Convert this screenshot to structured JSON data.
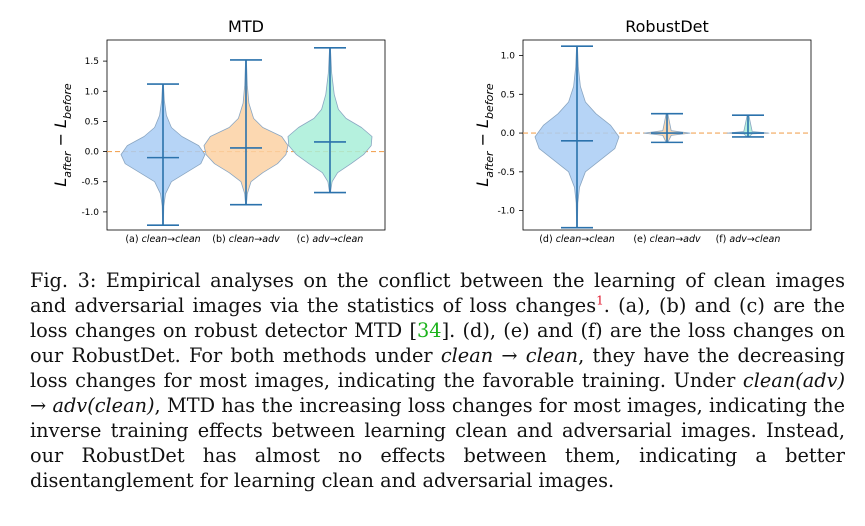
{
  "chart_data": [
    {
      "type": "violin",
      "title": "MTD",
      "ylabel": "L_after − L_before",
      "ylim": [
        -1.3,
        1.85
      ],
      "yticks": [
        "1.5",
        "1.0",
        "0.5",
        "0.0",
        "-0.5",
        "-1.0"
      ],
      "ytick_values": [
        1.5,
        1.0,
        0.5,
        0.0,
        -0.5,
        -1.0
      ],
      "reference_line": 0.0,
      "categories": [
        "(a) clean→clean",
        "(b) clean→adv",
        "(c) adv→clean"
      ],
      "violins": [
        {
          "label": "(a) clean→clean",
          "color": "#a9cdf4",
          "min": -1.22,
          "max": 1.12,
          "median": -0.1,
          "density": [
            [
              -1.22,
              0.01
            ],
            [
              -0.9,
              0.02
            ],
            [
              -0.7,
              0.06
            ],
            [
              -0.5,
              0.2
            ],
            [
              -0.35,
              0.55
            ],
            [
              -0.2,
              0.9
            ],
            [
              -0.05,
              1.0
            ],
            [
              0.1,
              0.85
            ],
            [
              0.25,
              0.45
            ],
            [
              0.4,
              0.2
            ],
            [
              0.6,
              0.08
            ],
            [
              0.85,
              0.03
            ],
            [
              1.12,
              0.01
            ]
          ]
        },
        {
          "label": "(b) clean→adv",
          "color": "#fbd1a3",
          "min": -0.88,
          "max": 1.52,
          "median": 0.06,
          "density": [
            [
              -0.88,
              0.01
            ],
            [
              -0.7,
              0.03
            ],
            [
              -0.5,
              0.12
            ],
            [
              -0.35,
              0.4
            ],
            [
              -0.2,
              0.75
            ],
            [
              -0.05,
              0.95
            ],
            [
              0.1,
              1.0
            ],
            [
              0.25,
              0.85
            ],
            [
              0.4,
              0.4
            ],
            [
              0.55,
              0.18
            ],
            [
              0.8,
              0.07
            ],
            [
              1.1,
              0.03
            ],
            [
              1.52,
              0.01
            ]
          ]
        },
        {
          "label": "(c) adv→clean",
          "color": "#a8efd8",
          "min": -0.68,
          "max": 1.72,
          "median": 0.16,
          "density": [
            [
              -0.68,
              0.01
            ],
            [
              -0.5,
              0.05
            ],
            [
              -0.35,
              0.18
            ],
            [
              -0.2,
              0.5
            ],
            [
              -0.05,
              0.8
            ],
            [
              0.1,
              0.98
            ],
            [
              0.25,
              1.0
            ],
            [
              0.4,
              0.75
            ],
            [
              0.55,
              0.38
            ],
            [
              0.7,
              0.2
            ],
            [
              0.95,
              0.1
            ],
            [
              1.3,
              0.04
            ],
            [
              1.72,
              0.01
            ]
          ]
        }
      ]
    },
    {
      "type": "violin",
      "title": "RobustDet",
      "ylabel": "L_after − L_before",
      "ylim": [
        -1.25,
        1.2
      ],
      "yticks": [
        "1.0",
        "0.5",
        "0.0",
        "-0.5",
        "-1.0"
      ],
      "ytick_values": [
        1.0,
        0.5,
        0.0,
        -0.5,
        -1.0
      ],
      "reference_line": 0.0,
      "categories": [
        "(d) clean→clean",
        "(e) clean→adv",
        "(f) adv→clean"
      ],
      "violins": [
        {
          "label": "(d) clean→clean",
          "color": "#a9cdf4",
          "min": -1.22,
          "max": 1.12,
          "median": -0.1,
          "density": [
            [
              -1.22,
              0.01
            ],
            [
              -0.9,
              0.02
            ],
            [
              -0.7,
              0.06
            ],
            [
              -0.5,
              0.2
            ],
            [
              -0.35,
              0.55
            ],
            [
              -0.2,
              0.9
            ],
            [
              -0.05,
              1.0
            ],
            [
              0.1,
              0.8
            ],
            [
              0.25,
              0.45
            ],
            [
              0.4,
              0.2
            ],
            [
              0.6,
              0.08
            ],
            [
              0.85,
              0.03
            ],
            [
              1.12,
              0.01
            ]
          ]
        },
        {
          "label": "(e) clean→adv",
          "color": "#fbd1a3",
          "min": -0.12,
          "max": 0.25,
          "median": 0.0,
          "density": [
            [
              -0.12,
              0.02
            ],
            [
              -0.03,
              0.1
            ],
            [
              0.0,
              0.55
            ],
            [
              0.03,
              0.1
            ],
            [
              0.25,
              0.02
            ]
          ]
        },
        {
          "label": "(f) adv→clean",
          "color": "#a8efd8",
          "min": -0.05,
          "max": 0.23,
          "median": 0.0,
          "density": [
            [
              -0.05,
              0.02
            ],
            [
              -0.01,
              0.1
            ],
            [
              0.0,
              0.5
            ],
            [
              0.02,
              0.1
            ],
            [
              0.23,
              0.02
            ]
          ]
        }
      ]
    }
  ],
  "caption": {
    "fig": "Fig. 3:",
    "t1": " Empirical analyses on the conflict between the learning of clean images and adversarial images via the statistics of loss changes",
    "sup": "1",
    "t2": ". (a), (b) and (c) are the loss changes on robust detector MTD [",
    "ref": "34",
    "t3": "]. (d), (e) and (f) are the loss changes on our RobustDet. For both methods under ",
    "m1": "clean → clean",
    "t4": ", they have the decreasing loss changes for most images, indicating the favorable training. Under ",
    "m2": "clean(adv) → adv(clean)",
    "t5": ", MTD has the increasing loss changes for most images, indicating the inverse training effects between learning clean and adversarial images. Instead, our RobustDet has almost no effects between them, indicating a better disentanglement for learning clean and adversarial images."
  },
  "colors": {
    "stroke": "#2b72ac",
    "reference": "#f2a65a",
    "edge": "#8aa6c2"
  }
}
